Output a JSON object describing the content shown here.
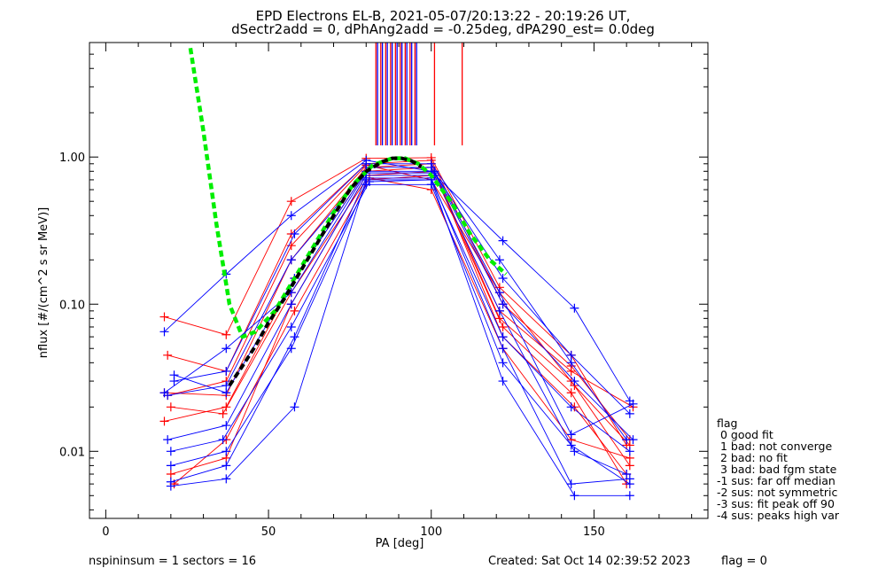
{
  "title_line1": "EPD Electrons EL-B, 2021-05-07/20:13:22 - 20:19:26 UT,",
  "title_line2": "dSectr2add = 0, dPhAng2add = -0.25deg, dPA290_est=   0.0deg",
  "footer": {
    "left": "nspininsum =  1  sectors = 16",
    "created": "Created: Sat Oct 14 02:39:52 2023",
    "flag": "flag = 0"
  },
  "flag_legend": {
    "title": "flag",
    "items": [
      " 0 good fit",
      " 1 bad: not converge",
      " 2 bad: no fit",
      " 3 bad: bad fgm state",
      "-1 sus: far off median",
      "-2 sus: not symmetric",
      "-3 sus: fit peak off 90",
      "-4 sus: peaks high var"
    ]
  },
  "colors": {
    "red": "#ff0000",
    "blue": "#0000ff",
    "green": "#00ee00",
    "black": "#000000"
  },
  "chart_data": {
    "type": "line",
    "xlabel": "PA [deg]",
    "ylabel": "nflux [#/(cm^2 s sr MeV)]",
    "xlim": [
      -5,
      185
    ],
    "ylim": [
      0.0035,
      6.0
    ],
    "y_scale": "log",
    "x_ticks": [
      0,
      50,
      100,
      150
    ],
    "x_tick_labels": [
      "0",
      "50",
      "100",
      "150"
    ],
    "y_ticks": [
      0.01,
      0.1,
      1.0
    ],
    "y_tick_labels": [
      "0.01",
      "0.10",
      "1.00"
    ],
    "grid": false,
    "series": [
      {
        "color": "red",
        "x": [
          18,
          37,
          57,
          80,
          100,
          121,
          143,
          160
        ],
        "y": [
          0.082,
          0.062,
          0.5,
          0.98,
          0.99,
          0.13,
          0.045,
          0.011
        ]
      },
      {
        "color": "red",
        "x": [
          19,
          37,
          57,
          80,
          100,
          122,
          143,
          161
        ],
        "y": [
          0.045,
          0.035,
          0.3,
          0.9,
          0.95,
          0.1,
          0.038,
          0.012
        ]
      },
      {
        "color": "red",
        "x": [
          18,
          37,
          57,
          80,
          100,
          121,
          143,
          161
        ],
        "y": [
          0.025,
          0.024,
          0.2,
          0.85,
          0.9,
          0.08,
          0.03,
          0.008
        ]
      },
      {
        "color": "red",
        "x": [
          18,
          37,
          58,
          80,
          100,
          122,
          143,
          160
        ],
        "y": [
          0.016,
          0.02,
          0.15,
          0.8,
          0.85,
          0.07,
          0.025,
          0.006
        ]
      },
      {
        "color": "red",
        "x": [
          20,
          37,
          57,
          80,
          101,
          122,
          144,
          160
        ],
        "y": [
          0.007,
          0.009,
          0.1,
          0.75,
          0.8,
          0.06,
          0.02,
          0.007
        ]
      },
      {
        "color": "red",
        "x": [
          20,
          36,
          57,
          80,
          101,
          121,
          143,
          162
        ],
        "y": [
          0.02,
          0.018,
          0.12,
          0.7,
          0.75,
          0.09,
          0.035,
          0.02
        ]
      },
      {
        "color": "red",
        "x": [
          21,
          37,
          58,
          81,
          100,
          122,
          143,
          161
        ],
        "y": [
          0.006,
          0.012,
          0.09,
          0.72,
          0.6,
          0.05,
          0.012,
          0.009
        ]
      },
      {
        "color": "red",
        "x": [
          19,
          37,
          57,
          80,
          100,
          121,
          144,
          161
        ],
        "y": [
          0.024,
          0.03,
          0.25,
          0.88,
          0.7,
          0.12,
          0.028,
          0.011
        ]
      },
      {
        "color": "blue",
        "x": [
          18,
          37,
          57,
          80,
          100,
          122,
          144,
          161
        ],
        "y": [
          0.065,
          0.16,
          0.4,
          0.95,
          0.8,
          0.27,
          0.094,
          0.022
        ]
      },
      {
        "color": "blue",
        "x": [
          19,
          37,
          57,
          81,
          100,
          122,
          143,
          161
        ],
        "y": [
          0.024,
          0.028,
          0.2,
          0.85,
          0.85,
          0.15,
          0.045,
          0.018
        ]
      },
      {
        "color": "blue",
        "x": [
          21,
          37,
          58,
          80,
          101,
          121,
          143,
          162
        ],
        "y": [
          0.033,
          0.025,
          0.15,
          0.8,
          0.8,
          0.12,
          0.013,
          0.021
        ]
      },
      {
        "color": "blue",
        "x": [
          19,
          37,
          57,
          80,
          101,
          121,
          144,
          160
        ],
        "y": [
          0.012,
          0.015,
          0.1,
          0.75,
          0.75,
          0.09,
          0.01,
          0.007
        ]
      },
      {
        "color": "blue",
        "x": [
          20,
          37,
          58,
          80,
          100,
          122,
          144,
          161
        ],
        "y": [
          0.0058,
          0.0065,
          0.02,
          0.7,
          0.7,
          0.03,
          0.005,
          0.005
        ]
      },
      {
        "color": "blue",
        "x": [
          20,
          37,
          57,
          80,
          100,
          122,
          143,
          161
        ],
        "y": [
          0.008,
          0.01,
          0.05,
          0.65,
          0.65,
          0.04,
          0.011,
          0.006
        ]
      },
      {
        "color": "blue",
        "x": [
          20,
          36,
          57,
          81,
          100,
          122,
          143,
          161
        ],
        "y": [
          0.01,
          0.012,
          0.07,
          0.68,
          0.7,
          0.06,
          0.02,
          0.01
        ]
      },
      {
        "color": "blue",
        "x": [
          21,
          37,
          58,
          80,
          100,
          121,
          143,
          160
        ],
        "y": [
          0.03,
          0.035,
          0.3,
          0.9,
          0.9,
          0.2,
          0.04,
          0.012
        ]
      },
      {
        "color": "blue",
        "x": [
          18,
          37,
          57,
          80,
          101,
          122,
          144,
          162
        ],
        "y": [
          0.025,
          0.05,
          0.12,
          0.78,
          0.78,
          0.1,
          0.03,
          0.012
        ]
      },
      {
        "color": "blue",
        "x": [
          20,
          37,
          58,
          80,
          100,
          122,
          143,
          161
        ],
        "y": [
          0.0062,
          0.008,
          0.06,
          0.72,
          0.72,
          0.05,
          0.006,
          0.0065
        ]
      }
    ],
    "fit_green": {
      "color": "green",
      "x": [
        26,
        30,
        34,
        38,
        42,
        46,
        52,
        58,
        64,
        70,
        76,
        82,
        88,
        92,
        96,
        100,
        106,
        112,
        118,
        123
      ],
      "y": [
        5.5,
        1.5,
        0.35,
        0.1,
        0.06,
        0.065,
        0.09,
        0.15,
        0.25,
        0.42,
        0.65,
        0.88,
        0.98,
        0.98,
        0.9,
        0.75,
        0.5,
        0.3,
        0.2,
        0.16
      ]
    },
    "fit_black": {
      "color": "black",
      "x": [
        38,
        42,
        46,
        50,
        55,
        60,
        65,
        70,
        75,
        80,
        85,
        88,
        91,
        94,
        97
      ],
      "y": [
        0.028,
        0.038,
        0.052,
        0.075,
        0.11,
        0.17,
        0.26,
        0.4,
        0.6,
        0.8,
        0.93,
        0.98,
        0.98,
        0.94,
        0.86
      ]
    },
    "vertical_lines": [
      {
        "color": "red",
        "x": [
          83,
          84.5,
          86,
          87.5,
          89,
          90.5,
          92,
          93.5,
          95,
          101,
          109.5
        ]
      },
      {
        "color": "blue",
        "x": [
          83.5,
          85,
          86.5,
          88,
          89.5,
          91,
          92.5,
          94,
          95.5
        ]
      }
    ],
    "vertical_lines_ylim": [
      1.2,
      6.0
    ]
  }
}
